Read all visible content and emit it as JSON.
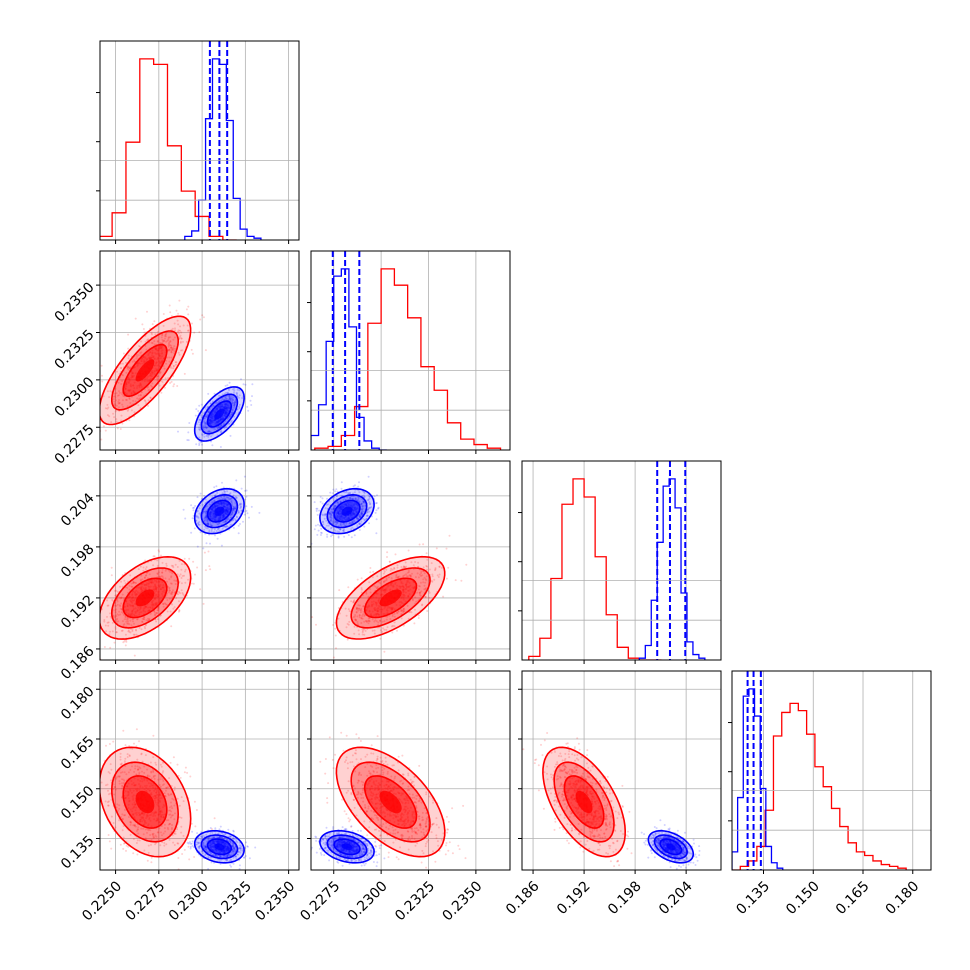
{
  "chart_data": {
    "type": "corner",
    "grid": true,
    "parameters": [
      {
        "ticks": [
          0.225,
          0.2275,
          0.23,
          0.2325,
          0.235
        ],
        "tick_labels": [
          "0.2250",
          "0.2275",
          "0.2300",
          "0.2325",
          "0.2350"
        ],
        "range": [
          0.2241,
          0.2356
        ]
      },
      {
        "ticks": [
          0.2275,
          0.23,
          0.2325,
          0.235
        ],
        "tick_labels": [
          "0.2275",
          "0.2300",
          "0.2325",
          "0.2350"
        ],
        "range": [
          0.2263,
          0.2368
        ]
      },
      {
        "ticks": [
          0.186,
          0.192,
          0.198,
          0.204
        ],
        "tick_labels": [
          "0.186",
          "0.192",
          "0.198",
          "0.204"
        ],
        "range": [
          0.1847,
          0.2081
        ]
      },
      {
        "ticks": [
          0.135,
          0.15,
          0.165,
          0.18
        ],
        "tick_labels": [
          "0.135",
          "0.150",
          "0.165",
          "0.180"
        ],
        "range": [
          0.1255,
          0.1855
        ]
      }
    ],
    "series": [
      {
        "color": "#ff0000",
        "means": [
          0.2267,
          0.2305,
          0.192,
          0.146
        ],
        "sigmas": [
          0.0012,
          0.0013,
          0.0022,
          0.0075
        ],
        "corr": [
          [
            0,
            1,
            0.75
          ],
          [
            0,
            2,
            0.5
          ],
          [
            1,
            2,
            0.6
          ],
          [
            0,
            3,
            -0.3
          ],
          [
            1,
            3,
            -0.55
          ],
          [
            2,
            3,
            -0.55
          ]
        ],
        "hist": [
          [
            0.224,
            0.2248,
            0.2256,
            0.2264,
            0.2272,
            0.228,
            0.2288,
            0.2296,
            0.2304,
            0.2312,
            0.232
          ],
          [
            0.2265,
            0.2272,
            0.2279,
            0.2286,
            0.2293,
            0.23,
            0.2307,
            0.2314,
            0.2321,
            0.2328,
            0.2335,
            0.2342,
            0.2349,
            0.2356,
            0.2363
          ],
          [
            0.1855,
            0.1868,
            0.1881,
            0.1894,
            0.1907,
            0.192,
            0.1933,
            0.1946,
            0.1959,
            0.1972,
            0.1985,
            0.1998,
            0.2011
          ],
          [
            0.1255,
            0.128,
            0.1305,
            0.133,
            0.1355,
            0.138,
            0.1405,
            0.143,
            0.1455,
            0.148,
            0.1505,
            0.153,
            0.1555,
            0.158,
            0.1605,
            0.163,
            0.1655,
            0.168,
            0.1705,
            0.173,
            0.1755,
            0.178
          ]
        ],
        "counts": [
          [
            2,
            15,
            54,
            100,
            97,
            52,
            27,
            13,
            2,
            0
          ],
          [
            1,
            2,
            8,
            24,
            70,
            100,
            91,
            73,
            46,
            33,
            15,
            6,
            3,
            1
          ],
          [
            2,
            12,
            45,
            86,
            100,
            90,
            57,
            25,
            7,
            1,
            0,
            0
          ],
          [
            0,
            2,
            5,
            13,
            33,
            74,
            87,
            92,
            88,
            75,
            57,
            46,
            34,
            24,
            15,
            10,
            8,
            5,
            3,
            2,
            1
          ]
        ]
      },
      {
        "color": "#0000ff",
        "means": [
          0.231,
          0.2282,
          0.2022,
          0.1325
        ],
        "sigmas": [
          0.00065,
          0.00065,
          0.0012,
          0.0022
        ],
        "quantiles": [
          [
            0.23045,
            0.231,
            0.23145
          ],
          [
            0.22745,
            0.2281,
            0.22885
          ],
          [
            0.2006,
            0.2021,
            0.2039
          ],
          [
            0.1302,
            0.132,
            0.1342
          ]
        ],
        "corr": [
          [
            0,
            1,
            0.6
          ],
          [
            0,
            2,
            0.3
          ],
          [
            1,
            2,
            0.3
          ],
          [
            0,
            3,
            -0.2
          ],
          [
            1,
            3,
            -0.3
          ],
          [
            2,
            3,
            -0.45
          ]
        ],
        "hist": [
          [
            0.229,
            0.2294,
            0.2298,
            0.2302,
            0.2306,
            0.231,
            0.2314,
            0.2318,
            0.2322,
            0.2326,
            0.233,
            0.2334
          ],
          [
            0.2263,
            0.2267,
            0.2271,
            0.2275,
            0.2279,
            0.2283,
            0.2287,
            0.2291,
            0.2295,
            0.2299,
            0.2303
          ],
          [
            0.1985,
            0.1992,
            0.1999,
            0.2006,
            0.2013,
            0.202,
            0.2027,
            0.2034,
            0.2041,
            0.2048,
            0.2055,
            0.2062
          ],
          [
            0.1255,
            0.1272,
            0.1289,
            0.1306,
            0.1323,
            0.134,
            0.1357,
            0.1374,
            0.1391,
            0.1408
          ]
        ],
        "counts": [
          [
            2,
            5,
            22,
            67,
            100,
            97,
            66,
            23,
            6,
            2,
            1
          ],
          [
            8,
            25,
            60,
            96,
            100,
            68,
            18,
            5,
            1,
            0
          ],
          [
            1,
            8,
            33,
            65,
            96,
            100,
            84,
            37,
            10,
            3,
            1
          ],
          [
            10,
            40,
            96,
            100,
            85,
            45,
            13,
            4,
            1
          ]
        ]
      }
    ]
  }
}
